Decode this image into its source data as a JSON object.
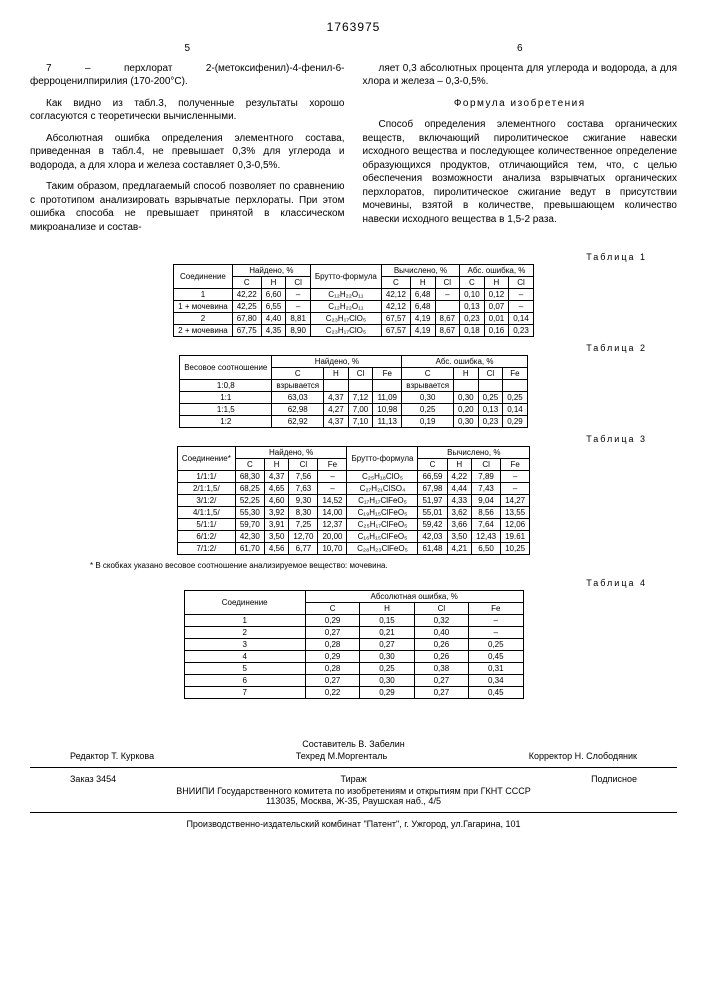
{
  "doc_number": "1763975",
  "col_left_num": "5",
  "col_right_num": "6",
  "left_paras": [
    "7 – перхлорат 2-(метоксифенил)-4-фенил-6-ферроценилпирилия (170-200°С).",
    "Как видно из табл.3, полученные результаты хорошо согласуются с теоретически вычисленными.",
    "Абсолютная ошибка определения элементного состава, приведенная в табл.4, не превышает 0,3% для углерода и водорода, а для хлора и железа составляет 0,3-0,5%.",
    "Таким образом, предлагаемый способ позволяет по сравнению с прототипом анализировать взрывчатые перхлораты. При этом ошибка способа не превышает принятой в классическом микроанализе и состав-"
  ],
  "right_paras": [
    "ляет 0,3 абсолютных процента для углерода и водорода, а для хлора и железа – 0,3-0,5%.",
    "Формула изобретения",
    "Способ определения элементного состава органических веществ, включающий пиролитическое сжигание навески исходного вещества и последующее количественное определение образующихся продуктов, отличающийся тем, что, с целью обеспечения возможности анализа взрывчатых органических перхлоратов, пиролитическое сжигание ведут в присутствии мочевины, взятой в количестве, превышающем количество навески исходного вещества в 1,5-2 раза."
  ],
  "t1": {
    "label": "Таблица 1",
    "head_main": [
      "Соединение",
      "Найдено, %",
      "Брутто-формула",
      "Вычислено, %",
      "Абс. ошибка, %"
    ],
    "head_sub": [
      "C",
      "H",
      "Cl",
      "C",
      "H",
      "Cl",
      "C",
      "H",
      "Cl"
    ],
    "rows": [
      [
        "1",
        "42,22",
        "6,60",
        "–",
        "C₁₂H₂₂O₁₁",
        "42,12",
        "6,48",
        "–",
        "0,10",
        "0,12",
        "–"
      ],
      [
        "1 + мочевина",
        "42,25",
        "6,55",
        "–",
        "C₁₂H₂₂O₁₁",
        "42,12",
        "6,48",
        "",
        "0,13",
        "0,07",
        "–"
      ],
      [
        "2",
        "67,80",
        "4,40",
        "8,81",
        "C₂₃H₁₇ClO₅",
        "67,57",
        "4,19",
        "8,67",
        "0,23",
        "0,01",
        "0,14"
      ],
      [
        "2 + мочевина",
        "67,75",
        "4,35",
        "8,90",
        "C₂₃H₁₇ClO₅",
        "67,57",
        "4,19",
        "8,67",
        "0,18",
        "0,16",
        "0,23"
      ]
    ]
  },
  "t2": {
    "label": "Таблица 2",
    "head_main": [
      "Весовое соотношение",
      "Найдено, %",
      "Абс. ошибка, %"
    ],
    "head_sub": [
      "C",
      "H",
      "Cl",
      "Fe",
      "C",
      "H",
      "Cl",
      "Fe"
    ],
    "rows": [
      [
        "1:0,8",
        "взрывается",
        "",
        "",
        "",
        "взрывается",
        "",
        "",
        ""
      ],
      [
        "1:1",
        "63,03",
        "4,37",
        "7,12",
        "11,09",
        "0,30",
        "0,30",
        "0,25",
        "0,25"
      ],
      [
        "1:1,5",
        "62,98",
        "4,27",
        "7,00",
        "10,98",
        "0,25",
        "0,20",
        "0,13",
        "0,14"
      ],
      [
        "1:2",
        "62,92",
        "4,37",
        "7,10",
        "11,13",
        "0,19",
        "0,30",
        "0,23",
        "0,29"
      ]
    ]
  },
  "t3": {
    "label": "Таблица 3",
    "head_main": [
      "Соединение*",
      "Найдено, %",
      "Брутто-формула",
      "Вычислено, %"
    ],
    "head_sub": [
      "C",
      "H",
      "Cl",
      "Fe",
      "C",
      "H",
      "Cl",
      "Fe"
    ],
    "rows": [
      [
        "1/1:1/",
        "68,30",
        "4,37",
        "7,56",
        "–",
        "C₂₅H₁₈ClO₅",
        "66,59",
        "4,22",
        "7,89",
        "–"
      ],
      [
        "2/1:1,5/",
        "68,25",
        "4,65",
        "7,63",
        "–",
        "C₂₇H₂₁ClSO₄",
        "67,98",
        "4,44",
        "7,43",
        "–"
      ],
      [
        "3/1:2/",
        "52,25",
        "4,60",
        "9,30",
        "14,52",
        "C₁₇H₁₇ClFeO₅",
        "51,97",
        "4,33",
        "9,04",
        "14,27"
      ],
      [
        "4/1:1,5/",
        "55,30",
        "3,92",
        "8,30",
        "14,00",
        "C₁₉H₁₅ClFeO₅",
        "55,01",
        "3,62",
        "8,56",
        "13,55"
      ],
      [
        "5/1:1/",
        "59,70",
        "3,91",
        "7,25",
        "12,37",
        "C₂₅H₁₇ClFeO₅",
        "59,42",
        "3,66",
        "7,64",
        "12,06"
      ],
      [
        "6/1:2/",
        "42,30",
        "3,50",
        "12,70",
        "20,00",
        "C₁₆H₁₅ClFeO₅",
        "42,03",
        "3,50",
        "12,43",
        "19.61"
      ],
      [
        "7/1:2/",
        "61,70",
        "4,56",
        "6,77",
        "10,70",
        "C₂₈H₂₃ClFeO₅",
        "61,48",
        "4,21",
        "6,50",
        "10,25"
      ]
    ],
    "footnote": "* В скобках указано весовое соотношение анализируемое вещество: мочевина."
  },
  "t4": {
    "label": "Таблица 4",
    "head_main": [
      "Соединение",
      "Абсолютная ошибка, %"
    ],
    "head_sub": [
      "C",
      "H",
      "Cl",
      "Fe"
    ],
    "rows": [
      [
        "1",
        "0,29",
        "0,15",
        "0,32",
        "–"
      ],
      [
        "2",
        "0,27",
        "0,21",
        "0,40",
        "–"
      ],
      [
        "3",
        "0,28",
        "0,27",
        "0,26",
        "0,25"
      ],
      [
        "4",
        "0,29",
        "0,30",
        "0,26",
        "0,45"
      ],
      [
        "5",
        "0,28",
        "0,25",
        "0,38",
        "0,31"
      ],
      [
        "6",
        "0,27",
        "0,30",
        "0,27",
        "0,34"
      ],
      [
        "7",
        "0,22",
        "0,29",
        "0,27",
        "0,45"
      ]
    ]
  },
  "credits": {
    "composer": "Составитель В. Забелин",
    "editor_l": "Редактор  Т. Куркова",
    "techred": "Техред М.Моргенталь",
    "corrector": "Корректор  Н. Слободяник",
    "order": "Заказ 3454",
    "tirazh": "Тираж",
    "sub": "Подписное",
    "vniipi": "ВНИИПИ Государственного комитета по изобретениям и открытиям при ГКНТ СССР",
    "addr": "113035, Москва, Ж-35, Раушская наб., 4/5",
    "prod": "Производственно-издательский комбинат \"Патент\", г. Ужгород, ул.Гагарина, 101"
  }
}
